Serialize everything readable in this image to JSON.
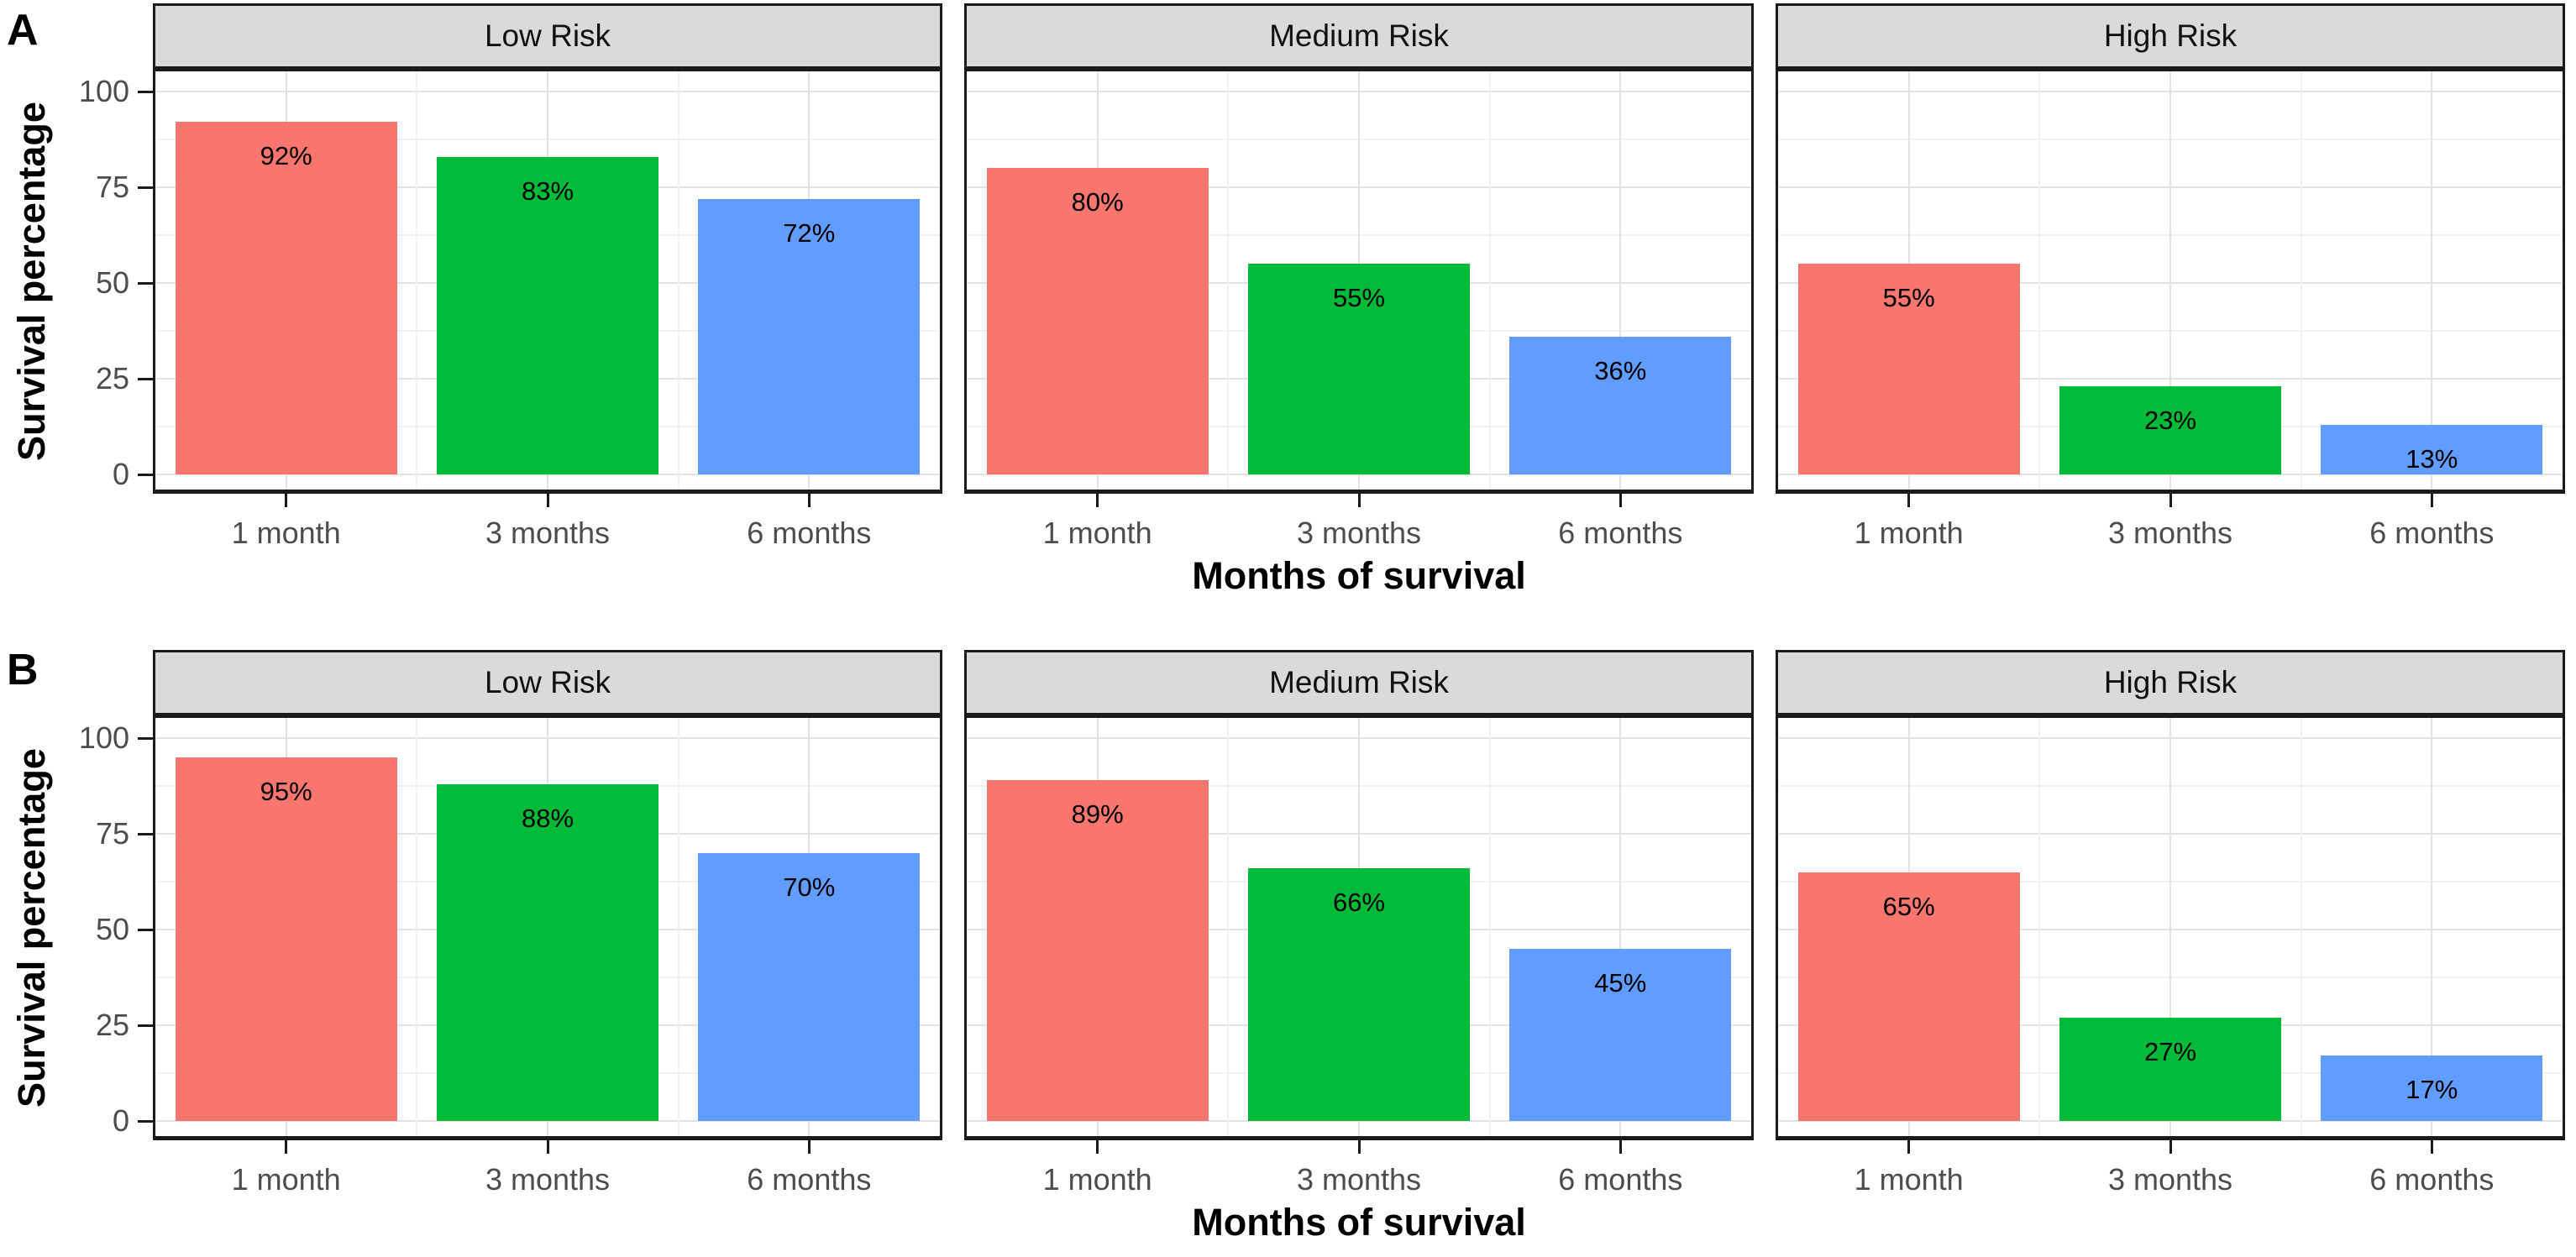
{
  "figure": {
    "description": "Two-row faceted bar chart figure (panels A and B), each panel faceted into Low/Medium/High Risk groups showing survival percentage at 1, 3 and 6 months.",
    "panel_labels": [
      "A",
      "B"
    ]
  },
  "style": {
    "strip_bg": "#dadada",
    "panel_border": "#1a1a1a",
    "grid_major": "#e2e2e2",
    "grid_minor": "#f1f1f1",
    "axis_text_color": "#4d4d4d",
    "tick_mark_color": "#1a1a1a",
    "title_color": "#000000",
    "bar_colors": [
      "#F8766D",
      "#00BA38",
      "#619CFF"
    ]
  },
  "chart_data": [
    {
      "type": "bar",
      "panel_label": "A",
      "facets": [
        "Low Risk",
        "Medium Risk",
        "High Risk"
      ],
      "categories": [
        "1 month",
        "3 months",
        "6 months"
      ],
      "xlabel": "Months of survival",
      "ylabel": "Survival percentage",
      "yticks": [
        0,
        25,
        50,
        75,
        100
      ],
      "ylim": [
        0,
        100
      ],
      "grid": true,
      "legend": "none",
      "bar_colors": [
        "#F8766D",
        "#00BA38",
        "#619CFF"
      ],
      "series": [
        {
          "facet": "Low Risk",
          "values": [
            92,
            83,
            72
          ],
          "labels": [
            "92%",
            "83%",
            "72%"
          ]
        },
        {
          "facet": "Medium Risk",
          "values": [
            80,
            55,
            36
          ],
          "labels": [
            "80%",
            "55%",
            "36%"
          ]
        },
        {
          "facet": "High Risk",
          "values": [
            55,
            23,
            13
          ],
          "labels": [
            "55%",
            "23%",
            "13%"
          ]
        }
      ]
    },
    {
      "type": "bar",
      "panel_label": "B",
      "facets": [
        "Low Risk",
        "Medium Risk",
        "High Risk"
      ],
      "categories": [
        "1 month",
        "3 months",
        "6 months"
      ],
      "xlabel": "Months of survival",
      "ylabel": "Survival percentage",
      "yticks": [
        0,
        25,
        50,
        75,
        100
      ],
      "ylim": [
        0,
        100
      ],
      "grid": true,
      "legend": "none",
      "bar_colors": [
        "#F8766D",
        "#00BA38",
        "#619CFF"
      ],
      "series": [
        {
          "facet": "Low Risk",
          "values": [
            95,
            88,
            70
          ],
          "labels": [
            "95%",
            "88%",
            "70%"
          ]
        },
        {
          "facet": "Medium Risk",
          "values": [
            89,
            66,
            45
          ],
          "labels": [
            "89%",
            "66%",
            "45%"
          ]
        },
        {
          "facet": "High Risk",
          "values": [
            65,
            27,
            17
          ],
          "labels": [
            "65%",
            "27%",
            "17%"
          ]
        }
      ]
    }
  ]
}
